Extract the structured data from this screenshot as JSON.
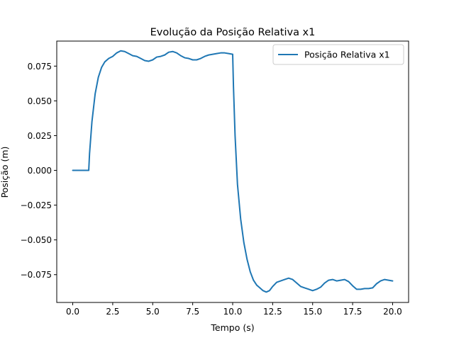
{
  "chart_data": {
    "type": "line",
    "title": "Evolução da Posição Relativa x1",
    "xlabel": "Tempo (s)",
    "ylabel": "Posição (m)",
    "xlim": [
      -1.0,
      21.0
    ],
    "ylim": [
      -0.095,
      0.093
    ],
    "xticks": [
      0.0,
      2.5,
      5.0,
      7.5,
      10.0,
      12.5,
      15.0,
      17.5,
      20.0
    ],
    "xtick_labels": [
      "0.0",
      "2.5",
      "5.0",
      "7.5",
      "10.0",
      "12.5",
      "15.0",
      "17.5",
      "20.0"
    ],
    "yticks": [
      -0.075,
      -0.05,
      -0.025,
      0.0,
      0.025,
      0.05,
      0.075
    ],
    "ytick_labels": [
      "−0.075",
      "−0.050",
      "−0.025",
      "0.000",
      "0.025",
      "0.050",
      "0.075"
    ],
    "grid": false,
    "legend": {
      "position": "top-right"
    },
    "series": [
      {
        "name": "Posição Relativa x1",
        "color": "#1f77b4",
        "x": [
          0.0,
          0.5,
          1.0,
          1.05,
          1.2,
          1.4,
          1.6,
          1.8,
          2.0,
          2.25,
          2.5,
          2.75,
          3.0,
          3.25,
          3.5,
          3.75,
          4.0,
          4.25,
          4.5,
          4.75,
          5.0,
          5.25,
          5.5,
          5.75,
          6.0,
          6.25,
          6.5,
          6.75,
          7.0,
          7.25,
          7.5,
          7.75,
          8.0,
          8.25,
          8.5,
          8.75,
          9.0,
          9.25,
          9.5,
          9.75,
          10.0,
          10.05,
          10.15,
          10.3,
          10.5,
          10.7,
          10.9,
          11.1,
          11.3,
          11.5,
          11.7,
          11.9,
          12.1,
          12.3,
          12.5,
          12.75,
          13.0,
          13.25,
          13.5,
          13.75,
          14.0,
          14.25,
          14.5,
          14.75,
          15.0,
          15.25,
          15.5,
          15.75,
          16.0,
          16.25,
          16.5,
          16.75,
          17.0,
          17.25,
          17.5,
          17.75,
          18.0,
          18.25,
          18.5,
          18.75,
          19.0,
          19.25,
          19.5,
          19.75,
          20.0
        ],
        "y": [
          0.0,
          0.0,
          0.0,
          0.012,
          0.035,
          0.055,
          0.067,
          0.074,
          0.078,
          0.0805,
          0.082,
          0.0845,
          0.086,
          0.0855,
          0.084,
          0.0825,
          0.082,
          0.0805,
          0.079,
          0.0785,
          0.0795,
          0.0815,
          0.082,
          0.083,
          0.085,
          0.0855,
          0.0845,
          0.0825,
          0.081,
          0.0805,
          0.0795,
          0.0795,
          0.0805,
          0.082,
          0.083,
          0.0835,
          0.084,
          0.0845,
          0.0845,
          0.084,
          0.0835,
          0.06,
          0.025,
          -0.01,
          -0.035,
          -0.052,
          -0.064,
          -0.073,
          -0.079,
          -0.0825,
          -0.0845,
          -0.0865,
          -0.0875,
          -0.0865,
          -0.0835,
          -0.0805,
          -0.0795,
          -0.0785,
          -0.0775,
          -0.0785,
          -0.081,
          -0.0835,
          -0.0845,
          -0.0855,
          -0.0865,
          -0.0855,
          -0.084,
          -0.081,
          -0.079,
          -0.0785,
          -0.0795,
          -0.079,
          -0.0785,
          -0.08,
          -0.083,
          -0.0855,
          -0.0855,
          -0.085,
          -0.085,
          -0.0845,
          -0.0815,
          -0.0795,
          -0.0785,
          -0.079,
          -0.0795
        ]
      }
    ]
  }
}
